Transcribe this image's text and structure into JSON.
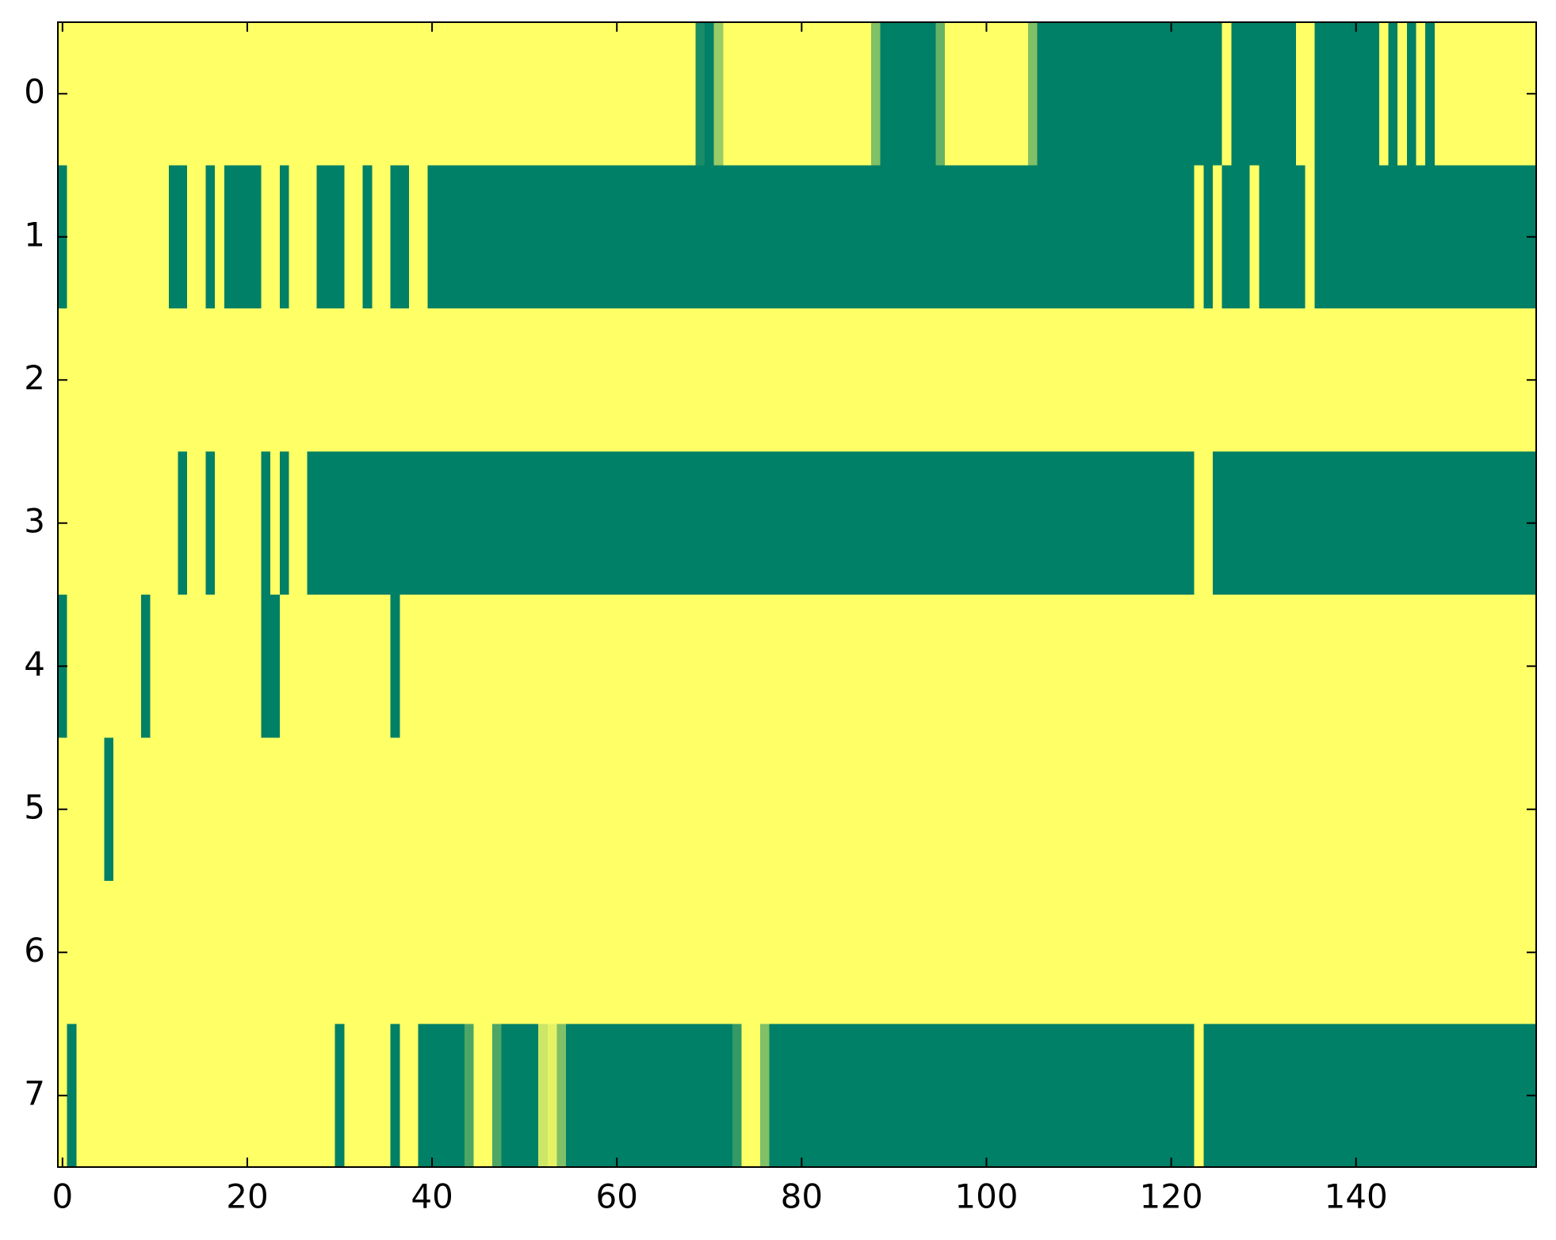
{
  "chart_data": {
    "type": "heatmap",
    "colormap": [
      "#008066",
      "#ffff66"
    ],
    "xlim": [
      -0.5,
      159.5
    ],
    "ylim": [
      7.5,
      -0.5
    ],
    "xticks": [
      0,
      20,
      40,
      60,
      80,
      100,
      120,
      140
    ],
    "yticks": [
      0,
      1,
      2,
      3,
      4,
      5,
      6,
      7
    ],
    "values": [
      [
        1,
        1,
        1,
        1,
        1,
        1,
        1,
        1,
        1,
        1,
        1,
        1,
        1,
        1,
        1,
        1,
        1,
        1,
        1,
        1,
        1,
        1,
        1,
        1,
        1,
        1,
        1,
        1,
        1,
        1,
        1,
        1,
        1,
        1,
        1,
        1,
        1,
        1,
        1,
        1,
        1,
        1,
        1,
        1,
        1,
        1,
        1,
        1,
        1,
        1,
        1,
        1,
        1,
        1,
        1,
        1,
        1,
        1,
        1,
        1,
        1,
        1,
        1,
        1,
        1,
        1,
        1,
        1,
        1,
        0.1,
        0,
        0.6,
        1,
        1,
        1,
        1,
        1,
        1,
        1,
        1,
        1,
        1,
        1,
        1,
        1,
        1,
        1,
        1,
        0.5,
        0,
        0,
        0,
        0,
        0,
        0,
        0.4,
        1,
        1,
        1,
        1,
        1,
        1,
        1,
        1,
        1,
        0.5,
        0,
        0,
        0,
        0,
        0,
        0,
        0,
        0,
        0,
        0,
        0,
        0,
        0,
        0,
        0,
        0,
        0,
        0,
        0,
        0,
        1,
        0,
        0,
        0,
        0,
        0,
        0,
        0,
        1,
        1,
        0,
        0,
        0,
        0,
        0,
        0,
        0,
        1,
        0,
        1,
        0,
        1,
        0,
        1,
        1,
        1,
        1,
        1,
        1,
        1,
        1,
        1,
        1,
        1
      ],
      [
        0,
        1,
        1,
        1,
        1,
        1,
        1,
        1,
        1,
        1,
        1,
        1,
        0,
        0,
        1,
        1,
        0,
        1,
        0,
        0,
        0,
        0,
        1,
        1,
        0,
        1,
        1,
        1,
        0,
        0,
        0,
        1,
        1,
        0,
        1,
        1,
        0,
        0,
        1,
        1,
        0,
        0,
        0,
        0,
        0,
        0,
        0,
        0,
        0,
        0,
        0,
        0,
        0,
        0,
        0,
        0,
        0,
        0,
        0,
        0,
        0,
        0,
        0,
        0,
        0,
        0,
        0,
        0,
        0,
        0,
        0,
        0,
        0,
        0,
        0,
        0,
        0,
        0,
        0,
        0,
        0,
        0,
        0,
        0,
        0,
        0,
        0,
        0,
        0,
        0,
        0,
        0,
        0,
        0,
        0,
        0,
        0,
        0,
        0,
        0,
        0,
        0,
        0,
        0,
        0,
        0,
        0,
        0,
        0,
        0,
        0,
        0,
        0,
        0,
        0,
        0,
        0,
        0,
        0,
        0,
        0,
        0,
        0,
        1,
        0,
        1,
        0,
        0,
        0,
        1,
        0,
        0,
        0,
        0,
        0,
        1,
        0,
        0,
        0,
        0,
        0,
        0,
        0,
        0,
        0,
        0,
        0,
        0,
        0,
        0,
        0,
        0,
        0,
        0,
        0,
        0,
        0,
        0,
        0,
        0
      ],
      [
        1,
        1,
        1,
        1,
        1,
        1,
        1,
        1,
        1,
        1,
        1,
        1,
        1,
        1,
        1,
        1,
        1,
        1,
        1,
        1,
        1,
        1,
        1,
        1,
        1,
        1,
        1,
        1,
        1,
        1,
        1,
        1,
        1,
        1,
        1,
        1,
        1,
        1,
        1,
        1,
        1,
        1,
        1,
        1,
        1,
        1,
        1,
        1,
        1,
        1,
        1,
        1,
        1,
        1,
        1,
        1,
        1,
        1,
        1,
        1,
        1,
        1,
        1,
        1,
        1,
        1,
        1,
        1,
        1,
        1,
        1,
        1,
        1,
        1,
        1,
        1,
        1,
        1,
        1,
        1,
        1,
        1,
        1,
        1,
        1,
        1,
        1,
        1,
        1,
        1,
        1,
        1,
        1,
        1,
        1,
        1,
        1,
        1,
        1,
        1,
        1,
        1,
        1,
        1,
        1,
        1,
        1,
        1,
        1,
        1,
        1,
        1,
        1,
        1,
        1,
        1,
        1,
        1,
        1,
        1,
        1,
        1,
        1,
        1,
        1,
        1,
        1,
        1,
        1,
        1,
        1,
        1,
        1,
        1,
        1,
        1,
        1,
        1,
        1,
        1,
        1,
        1,
        1,
        1,
        1,
        1,
        1,
        1,
        1,
        1,
        1,
        1,
        1,
        1,
        1,
        1,
        1,
        1,
        1,
        1
      ],
      [
        1,
        1,
        1,
        1,
        1,
        1,
        1,
        1,
        1,
        1,
        1,
        1,
        1,
        0,
        1,
        1,
        0,
        1,
        1,
        1,
        1,
        1,
        0,
        1,
        0,
        1,
        1,
        0,
        0,
        0,
        0,
        0,
        0,
        0,
        0,
        0,
        0,
        0,
        0,
        0,
        0,
        0,
        0,
        0,
        0,
        0,
        0,
        0,
        0,
        0,
        0,
        0,
        0,
        0,
        0,
        0,
        0,
        0,
        0,
        0,
        0,
        0,
        0,
        0,
        0,
        0,
        0,
        0,
        0,
        0,
        0,
        0,
        0,
        0,
        0,
        0,
        0,
        0,
        0,
        0,
        0,
        0,
        0,
        0,
        0,
        0,
        0,
        0,
        0,
        0,
        0,
        0,
        0,
        0,
        0,
        0,
        0,
        0,
        0,
        0,
        0,
        0,
        0,
        0,
        0,
        0,
        0,
        0,
        0,
        0,
        0,
        0,
        0,
        0,
        0,
        0,
        0,
        0,
        0,
        0,
        0,
        0,
        0,
        1,
        1,
        0,
        0,
        0,
        0,
        0,
        0,
        0,
        0,
        0,
        0,
        0,
        0,
        0,
        0,
        0,
        0,
        0,
        0,
        0,
        0,
        0,
        0,
        0,
        0,
        0,
        0,
        0,
        0,
        0,
        0,
        0,
        0,
        0,
        0,
        0
      ],
      [
        0,
        1,
        1,
        1,
        1,
        1,
        1,
        1,
        1,
        0,
        1,
        1,
        1,
        1,
        1,
        1,
        1,
        1,
        1,
        1,
        1,
        1,
        0,
        0,
        1,
        1,
        1,
        1,
        1,
        1,
        1,
        1,
        1,
        1,
        1,
        1,
        0,
        1,
        1,
        1,
        1,
        1,
        1,
        1,
        1,
        1,
        1,
        1,
        1,
        1,
        1,
        1,
        1,
        1,
        1,
        1,
        1,
        1,
        1,
        1,
        1,
        1,
        1,
        1,
        1,
        1,
        1,
        1,
        1,
        1,
        1,
        1,
        1,
        1,
        1,
        1,
        1,
        1,
        1,
        1,
        1,
        1,
        1,
        1,
        1,
        1,
        1,
        1,
        1,
        1,
        1,
        1,
        1,
        1,
        1,
        1,
        1,
        1,
        1,
        1,
        1,
        1,
        1,
        1,
        1,
        1,
        1,
        1,
        1,
        1,
        1,
        1,
        1,
        1,
        1,
        1,
        1,
        1,
        1,
        1,
        1,
        1,
        1,
        1,
        1,
        1,
        1,
        1,
        1,
        1,
        1,
        1,
        1,
        1,
        1,
        1,
        1,
        1,
        1,
        1,
        1,
        1,
        1,
        1,
        1,
        1,
        1,
        1,
        1,
        1,
        1,
        1,
        1,
        1,
        1,
        1,
        1,
        1,
        1,
        1
      ],
      [
        1,
        1,
        1,
        1,
        1,
        0,
        1,
        1,
        1,
        1,
        1,
        1,
        1,
        1,
        1,
        1,
        1,
        1,
        1,
        1,
        1,
        1,
        1,
        1,
        1,
        1,
        1,
        1,
        1,
        1,
        1,
        1,
        1,
        1,
        1,
        1,
        1,
        1,
        1,
        1,
        1,
        1,
        1,
        1,
        1,
        1,
        1,
        1,
        1,
        1,
        1,
        1,
        1,
        1,
        1,
        1,
        1,
        1,
        1,
        1,
        1,
        1,
        1,
        1,
        1,
        1,
        1,
        1,
        1,
        1,
        1,
        1,
        1,
        1,
        1,
        1,
        1,
        1,
        1,
        1,
        1,
        1,
        1,
        1,
        1,
        1,
        1,
        1,
        1,
        1,
        1,
        1,
        1,
        1,
        1,
        1,
        1,
        1,
        1,
        1,
        1,
        1,
        1,
        1,
        1,
        1,
        1,
        1,
        1,
        1,
        1,
        1,
        1,
        1,
        1,
        1,
        1,
        1,
        1,
        1,
        1,
        1,
        1,
        1,
        1,
        1,
        1,
        1,
        1,
        1,
        1,
        1,
        1,
        1,
        1,
        1,
        1,
        1,
        1,
        1,
        1,
        1,
        1,
        1,
        1,
        1,
        1,
        1,
        1,
        1,
        1,
        1,
        1,
        1,
        1,
        1,
        1,
        1,
        1,
        1
      ],
      [
        1,
        1,
        1,
        1,
        1,
        1,
        1,
        1,
        1,
        1,
        1,
        1,
        1,
        1,
        1,
        1,
        1,
        1,
        1,
        1,
        1,
        1,
        1,
        1,
        1,
        1,
        1,
        1,
        1,
        1,
        1,
        1,
        1,
        1,
        1,
        1,
        1,
        1,
        1,
        1,
        1,
        1,
        1,
        1,
        1,
        1,
        1,
        1,
        1,
        1,
        1,
        1,
        1,
        1,
        1,
        1,
        1,
        1,
        1,
        1,
        1,
        1,
        1,
        1,
        1,
        1,
        1,
        1,
        1,
        1,
        1,
        1,
        1,
        1,
        1,
        1,
        1,
        1,
        1,
        1,
        1,
        1,
        1,
        1,
        1,
        1,
        1,
        1,
        1,
        1,
        1,
        1,
        1,
        1,
        1,
        1,
        1,
        1,
        1,
        1,
        1,
        1,
        1,
        1,
        1,
        1,
        1,
        1,
        1,
        1,
        1,
        1,
        1,
        1,
        1,
        1,
        1,
        1,
        1,
        1,
        1,
        1,
        1,
        1,
        1,
        1,
        1,
        1,
        1,
        1,
        1,
        1,
        1,
        1,
        1,
        1,
        1,
        1,
        1,
        1,
        1,
        1,
        1,
        1,
        1,
        1,
        1,
        1,
        1,
        1,
        1,
        1,
        1,
        1,
        1,
        1,
        1,
        1,
        1,
        1
      ],
      [
        1,
        0,
        1,
        1,
        1,
        1,
        1,
        1,
        1,
        1,
        1,
        1,
        1,
        1,
        1,
        1,
        1,
        1,
        1,
        1,
        1,
        1,
        1,
        1,
        1,
        1,
        1,
        1,
        1,
        1,
        0,
        1,
        1,
        1,
        1,
        1,
        0,
        1,
        1,
        0,
        0,
        0,
        0,
        0,
        0.3,
        1,
        1,
        0.3,
        0,
        0,
        0,
        0,
        0.8,
        0.9,
        0.5,
        0,
        0,
        0,
        0,
        0,
        0,
        0,
        0,
        0,
        0,
        0,
        0,
        0,
        0,
        0,
        0,
        0,
        0,
        0.2,
        1,
        1,
        0.5,
        0,
        0,
        0,
        0,
        0,
        0,
        0,
        0,
        0,
        0,
        0,
        0,
        0,
        0,
        0,
        0,
        0,
        0,
        0,
        0,
        0,
        0,
        0,
        0,
        0,
        0,
        0,
        0,
        0,
        0,
        0,
        0,
        0,
        0,
        0,
        0,
        0,
        0,
        0,
        0,
        0,
        0,
        0,
        0,
        0,
        0,
        1,
        0,
        0,
        0,
        0,
        0,
        0,
        0,
        0,
        0,
        0,
        0,
        0,
        0,
        0,
        0,
        0,
        0,
        0,
        0,
        0,
        0,
        0,
        0,
        0,
        0,
        0,
        0,
        0,
        0,
        0,
        0,
        0,
        0,
        0,
        0,
        0
      ]
    ]
  }
}
